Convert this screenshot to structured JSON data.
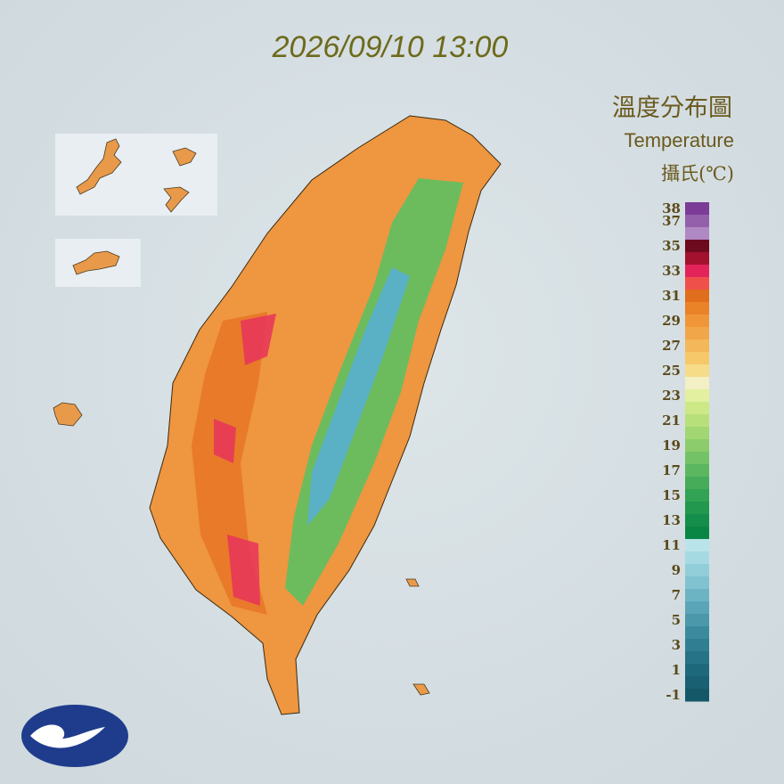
{
  "title": "2026/09/10 13:00",
  "legend": {
    "title": "溫度分布圖",
    "subtitle": "Temperature",
    "unit": "攝氏(℃)",
    "ticks": [
      38,
      37,
      35,
      33,
      31,
      29,
      27,
      25,
      23,
      21,
      19,
      17,
      15,
      13,
      11,
      9,
      7,
      5,
      3,
      1,
      -1
    ],
    "colors": [
      "#7b3b96",
      "#9560ab",
      "#b088c4",
      "#6e0a1e",
      "#a3112f",
      "#e3245a",
      "#f0504a",
      "#e06e1c",
      "#ea8228",
      "#f09638",
      "#f2a64a",
      "#f4b75a",
      "#f6c86a",
      "#f6dc88",
      "#f2f0c4",
      "#e2f0a0",
      "#cde886",
      "#b8e07a",
      "#a2d672",
      "#8ccc6c",
      "#74c266",
      "#5cb860",
      "#46ac5a",
      "#32a254",
      "#22984e",
      "#148e4a",
      "#0a8644",
      "#b8e4ea",
      "#a6dae2",
      "#92ceda",
      "#80c2d0",
      "#6cb4c4",
      "#5aa6b8",
      "#4a98aa",
      "#3c8a9e",
      "#307e92",
      "#267286",
      "#1e687c",
      "#186072",
      "#145868"
    ]
  }
}
